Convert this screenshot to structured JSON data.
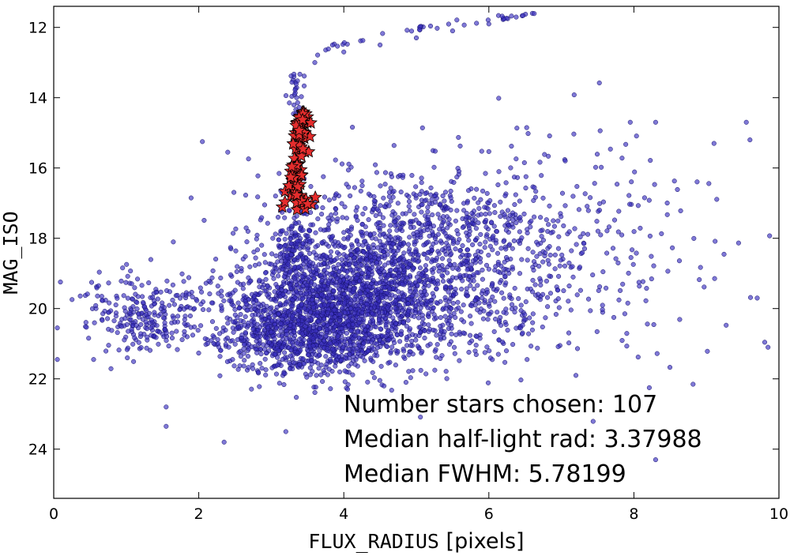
{
  "chart_data": {
    "type": "scatter",
    "xlabel_mono": "FLUX_RADIUS",
    "xlabel_rest": " [pixels]",
    "ylabel": "MAG_ISO",
    "xlim": [
      0,
      10
    ],
    "ylim": [
      25.4,
      11.4
    ],
    "y_inverted": true,
    "x_ticks": [
      0,
      2,
      4,
      6,
      8,
      10
    ],
    "y_ticks": [
      12,
      14,
      16,
      18,
      20,
      22,
      24
    ],
    "grid": false,
    "annotations": [
      "Number stars chosen: 107",
      "Median half-light rad: 3.37988",
      "Median FWHM: 5.78199"
    ],
    "series": [
      {
        "marker": "circle",
        "color": "#3a2fc0",
        "sample_points": [
          [
            3.6,
            13.0
          ],
          [
            4.0,
            12.7
          ],
          [
            4.5,
            12.5
          ],
          [
            5.0,
            12.3
          ],
          [
            5.5,
            12.1
          ],
          [
            6.0,
            11.9
          ],
          [
            6.6,
            11.6
          ],
          [
            3.3,
            13.5
          ],
          [
            3.35,
            14.0
          ],
          [
            3.4,
            14.5
          ],
          [
            2.05,
            15.25
          ],
          [
            2.4,
            15.55
          ],
          [
            9.55,
            14.7
          ],
          [
            9.6,
            15.2
          ],
          [
            8.3,
            14.7
          ],
          [
            7.95,
            14.7
          ],
          [
            0.05,
            20.55
          ],
          [
            0.05,
            21.45
          ],
          [
            0.55,
            21.45
          ],
          [
            1.55,
            22.8
          ],
          [
            1.55,
            23.35
          ],
          [
            2.35,
            23.8
          ],
          [
            3.2,
            23.5
          ],
          [
            7.2,
            21.9
          ],
          [
            8.3,
            24.3
          ],
          [
            9.85,
            21.1
          ],
          [
            9.7,
            19.7
          ]
        ],
        "clusters": [
          {
            "cx": 3.9,
            "cy": 20.0,
            "sx": 0.7,
            "sy": 0.9,
            "n": 1400
          },
          {
            "cx": 3.3,
            "cy": 20.8,
            "sx": 0.5,
            "sy": 0.6,
            "n": 500
          },
          {
            "cx": 1.3,
            "cy": 20.2,
            "sx": 0.45,
            "sy": 0.55,
            "n": 260
          },
          {
            "cx": 4.8,
            "cy": 19.2,
            "sx": 0.9,
            "sy": 1.0,
            "n": 700
          },
          {
            "cx": 4.9,
            "cy": 17.6,
            "sx": 0.9,
            "sy": 0.8,
            "n": 420
          },
          {
            "cx": 6.5,
            "cy": 17.8,
            "sx": 1.0,
            "sy": 1.2,
            "n": 260
          },
          {
            "cx": 3.3,
            "cy": 18.3,
            "sx": 0.12,
            "sy": 0.6,
            "n": 140
          },
          {
            "cx": 6.2,
            "cy": 20.0,
            "sx": 0.5,
            "sy": 0.7,
            "n": 120
          },
          {
            "cx": 8.0,
            "cy": 18.8,
            "sx": 0.9,
            "sy": 1.6,
            "n": 70
          }
        ]
      },
      {
        "marker": "star",
        "color": "#e52d2d",
        "count": 107,
        "x_range": [
          3.2,
          3.6
        ],
        "y_range": [
          14.4,
          17.2
        ]
      }
    ]
  }
}
